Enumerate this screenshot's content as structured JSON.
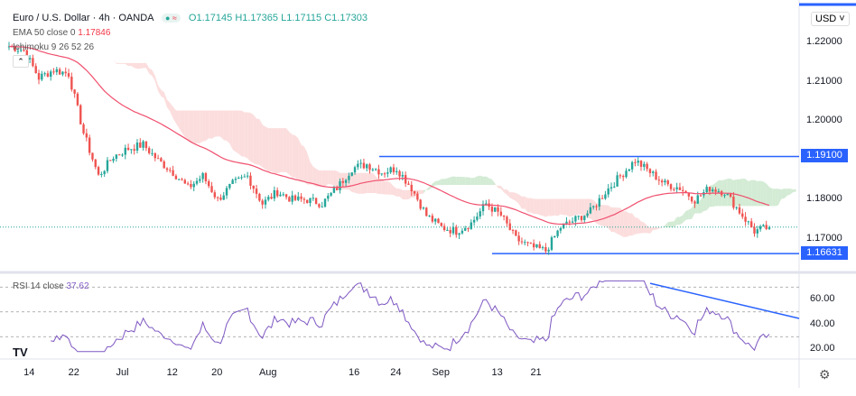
{
  "header": {
    "title": "Euro / U.S. Dollar · 4h · OANDA",
    "o": "O1.17145",
    "h": "H1.17365",
    "l": "L1.17115",
    "c": "C1.17303",
    "ema_label": "EMA 50 close 0",
    "ema_value": "1.17846",
    "ichimoku_label": "Ichimoku 9 26 52 26",
    "rsi_label": "RSI 14 close",
    "rsi_value": "37.62",
    "currency": "USD"
  },
  "colors": {
    "up": "#26a69a",
    "down": "#ef5350",
    "ema": "#f0506e",
    "cloud": "#fbd5d5",
    "cloud_up": "#c8e6c9",
    "line": "#2962ff",
    "rsi": "#7e57c2"
  },
  "chart_data": {
    "type": "candlestick",
    "title": "Euro / U.S. Dollar · 4h · OANDA",
    "ylim": [
      1.1625,
      1.2235
    ],
    "price_ticks": [
      "1.22000",
      "1.21000",
      "1.20000",
      "1.18000",
      "1.17000"
    ],
    "price_tick_values": [
      1.22,
      1.21,
      1.2,
      1.18,
      1.17
    ],
    "time_ticks": [
      "14",
      "22",
      "Jul",
      "12",
      "20",
      "Aug",
      "16",
      "24",
      "Sep",
      "13",
      "21"
    ],
    "time_tick_index": [
      7,
      22,
      38,
      55,
      70,
      86,
      116,
      130,
      144,
      164,
      177
    ],
    "closes": [
      1.219,
      1.218,
      1.211,
      1.213,
      1.212,
      1.197,
      1.186,
      1.191,
      1.193,
      1.194,
      1.19,
      1.187,
      1.183,
      1.186,
      1.18,
      1.184,
      1.186,
      1.179,
      1.182,
      1.18,
      1.18,
      1.179,
      1.183,
      1.188,
      1.189,
      1.187,
      1.188,
      1.183,
      1.176,
      1.173,
      1.172,
      1.174,
      1.179,
      1.176,
      1.17,
      1.168,
      1.167,
      1.173,
      1.175,
      1.177,
      1.182,
      1.186,
      1.19,
      1.187,
      1.184,
      1.183,
      1.18,
      1.183,
      1.182,
      1.177,
      1.172,
      1.173
    ],
    "horizontal_levels": [
      {
        "label": "1.19100",
        "value": 1.191
      },
      {
        "label": "1.16631",
        "value": 1.16631
      }
    ],
    "current_price": 1.17303,
    "rsi": {
      "ticks": [
        "60.00",
        "40.00",
        "20.00"
      ],
      "tick_values": [
        60,
        40,
        20
      ],
      "bands": [
        70,
        50,
        30
      ],
      "ylim": [
        15,
        80
      ],
      "trendline": [
        73,
        44.7
      ]
    }
  }
}
